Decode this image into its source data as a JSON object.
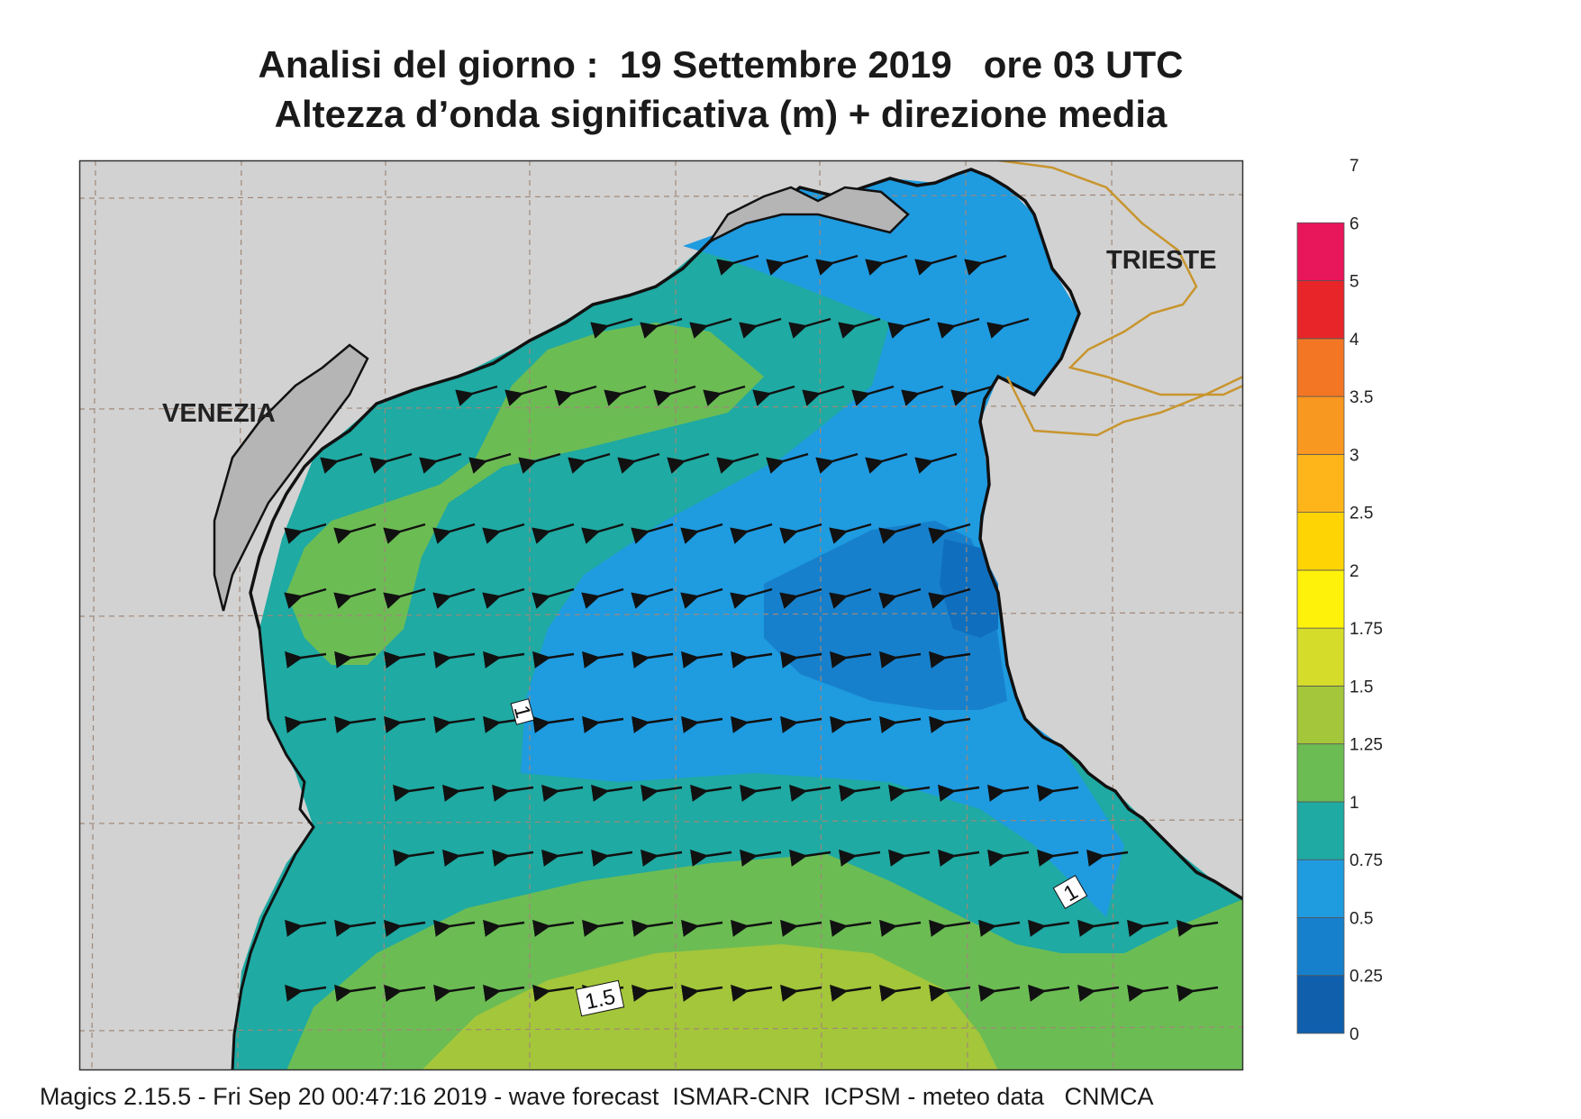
{
  "title": {
    "line1": "Analisi del giorno :  19 Settembre 2019   ore 03 UTC",
    "line2": "Altezza d’onda significativa (m) + direzione media"
  },
  "map": {
    "cities": {
      "venezia": "VENEZIA",
      "trieste": "TRIESTE"
    },
    "contour_labels": {
      "c1a": "1",
      "c1b": "1",
      "c15": "1.5"
    }
  },
  "legend": {
    "levels": [
      "0",
      "0.25",
      "0.5",
      "0.75",
      "1",
      "1.25",
      "1.5",
      "1.75",
      "2",
      "2.5",
      "3",
      "3.5",
      "4",
      "5",
      "6",
      "7"
    ],
    "colors": [
      "#0f5fad",
      "#1780cc",
      "#1f9be0",
      "#1faaa3",
      "#6cbc54",
      "#a4c63a",
      "#d5dc2a",
      "#fff20a",
      "#ffd405",
      "#fdb51a",
      "#f99820",
      "#f37625",
      "#e8262a",
      "#e8165a"
    ]
  },
  "footer": "Magics 2.15.5 - Fri Sep 20 00:47:16 2019 - wave forecast  ISMAR-CNR  ICPSM - meteo data   CNMCA"
}
